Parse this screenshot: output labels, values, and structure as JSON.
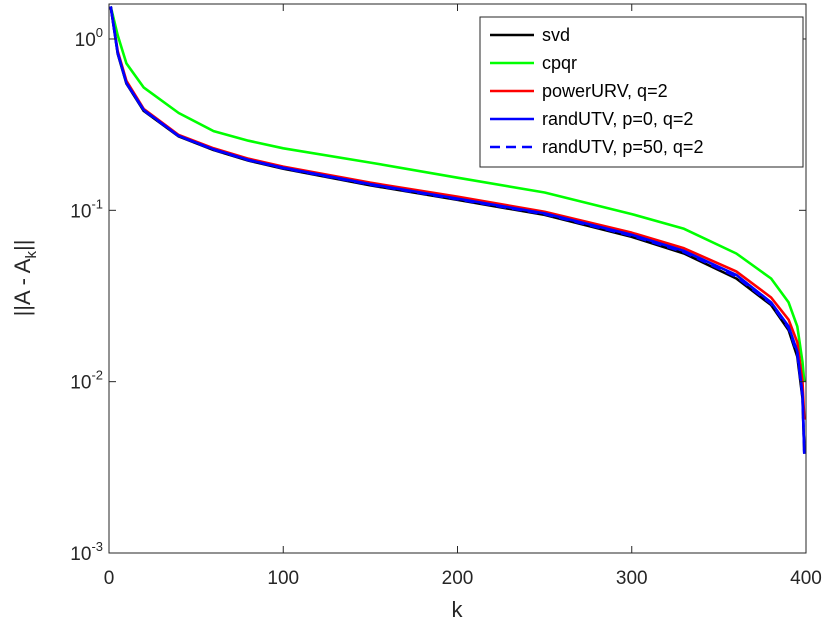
{
  "chart_data": {
    "type": "line",
    "title": "",
    "xlabel": "k",
    "ylabel": "||A - A",
    "ylabel_sub": "k",
    "ylabel_suffix": "||",
    "xlim": [
      0,
      400
    ],
    "ylim": [
      0.001,
      1.6
    ],
    "yscale": "log",
    "grid": false,
    "legend_position": "top-right",
    "x_ticks": [
      0,
      100,
      200,
      300,
      400
    ],
    "x_tick_labels": [
      "0",
      "100",
      "200",
      "300",
      "400"
    ],
    "y_ticks": [
      0.001,
      0.01,
      0.1,
      1
    ],
    "y_tick_base": "10",
    "y_tick_exponents": [
      "-3",
      "-2",
      "-1",
      "0"
    ],
    "series": [
      {
        "name": "svd",
        "color": "#000000",
        "style": "solid",
        "x": [
          1,
          5,
          10,
          20,
          40,
          60,
          80,
          100,
          150,
          200,
          250,
          300,
          330,
          360,
          380,
          390,
          395,
          398,
          399
        ],
        "y": [
          1.55,
          0.82,
          0.55,
          0.38,
          0.27,
          0.225,
          0.195,
          0.175,
          0.14,
          0.115,
          0.094,
          0.07,
          0.056,
          0.04,
          0.028,
          0.02,
          0.014,
          0.008,
          0.0038
        ]
      },
      {
        "name": "cpqr",
        "color": "#00ff00",
        "style": "solid",
        "x": [
          1,
          5,
          10,
          20,
          40,
          60,
          80,
          100,
          150,
          200,
          250,
          300,
          330,
          360,
          380,
          390,
          395,
          398,
          399
        ],
        "y": [
          1.55,
          1.05,
          0.72,
          0.52,
          0.37,
          0.29,
          0.255,
          0.23,
          0.19,
          0.155,
          0.127,
          0.095,
          0.078,
          0.056,
          0.04,
          0.029,
          0.021,
          0.013,
          0.01
        ]
      },
      {
        "name": "powerURV, q=2",
        "color": "#ff0000",
        "style": "solid",
        "x": [
          1,
          5,
          10,
          20,
          40,
          60,
          80,
          100,
          150,
          200,
          250,
          300,
          330,
          360,
          380,
          390,
          395,
          398,
          399
        ],
        "y": [
          1.55,
          0.85,
          0.57,
          0.39,
          0.275,
          0.23,
          0.2,
          0.18,
          0.145,
          0.12,
          0.098,
          0.074,
          0.06,
          0.044,
          0.031,
          0.023,
          0.017,
          0.01,
          0.006
        ]
      },
      {
        "name": "randUTV, p=0, q=2",
        "color": "#0000ff",
        "style": "solid",
        "x": [
          1,
          5,
          10,
          20,
          40,
          60,
          80,
          100,
          150,
          200,
          250,
          300,
          330,
          360,
          380,
          390,
          395,
          398,
          399
        ],
        "y": [
          1.55,
          0.83,
          0.555,
          0.385,
          0.272,
          0.227,
          0.197,
          0.177,
          0.142,
          0.117,
          0.096,
          0.072,
          0.058,
          0.042,
          0.029,
          0.021,
          0.015,
          0.0085,
          0.0038
        ]
      },
      {
        "name": "randUTV, p=50, q=2",
        "color": "#0000ff",
        "style": "dashed",
        "x": [
          1,
          5,
          10,
          20,
          40,
          60,
          80,
          100,
          150,
          200,
          250,
          300,
          330,
          360,
          380,
          390,
          395,
          398,
          399
        ],
        "y": [
          1.55,
          0.83,
          0.553,
          0.383,
          0.271,
          0.226,
          0.196,
          0.176,
          0.141,
          0.116,
          0.095,
          0.071,
          0.057,
          0.041,
          0.0285,
          0.0205,
          0.0145,
          0.0082,
          0.0038
        ]
      }
    ]
  }
}
